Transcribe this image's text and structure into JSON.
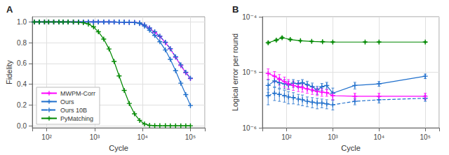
{
  "chart_data": [
    {
      "type": "line",
      "title": "A",
      "xlabel": "Cycle",
      "ylabel": "Fidelity",
      "log": "x",
      "xlim": [
        50,
        200000
      ],
      "xticks": [
        {
          "value": 100,
          "label": "10²"
        },
        {
          "value": 1000,
          "label": "10³"
        },
        {
          "value": 10000,
          "label": "10⁴"
        },
        {
          "value": 100000,
          "label": "10⁵"
        }
      ],
      "ylim": [
        -0.02,
        1.05
      ],
      "yticks": [
        {
          "value": 0.0,
          "label": "0.0"
        },
        0.2,
        0.4,
        0.6,
        0.8,
        {
          "value": 1.0,
          "label": "1.0"
        }
      ],
      "grid": true,
      "legend": "lower left",
      "series": [
        {
          "name": "MWPM-Corr",
          "color": "#ff00ff",
          "line_style": "solid",
          "marker": "+",
          "x": [
            55,
            70,
            90,
            110,
            140,
            180,
            220,
            280,
            360,
            460,
            580,
            740,
            950,
            1200,
            1550,
            2000,
            2550,
            3250,
            4150,
            5300,
            6800,
            8700,
            11000,
            14000,
            18000,
            23000,
            30000,
            38000,
            49000,
            63000,
            80000,
            100000
          ],
          "values": [
            1.0,
            1.0,
            1.0,
            1.0,
            1.0,
            1.0,
            1.0,
            1.0,
            1.0,
            1.0,
            1.0,
            1.0,
            1.0,
            1.0,
            1.0,
            1.0,
            0.9995,
            0.999,
            0.998,
            0.997,
            0.995,
            0.99,
            0.97,
            0.94,
            0.9,
            0.86,
            0.8,
            0.74,
            0.66,
            0.58,
            0.51,
            0.455
          ]
        },
        {
          "name": "Ours",
          "color": "#1f6fcc",
          "line_style": "solid",
          "marker": "+",
          "x": [
            55,
            70,
            90,
            110,
            140,
            180,
            220,
            280,
            360,
            460,
            580,
            740,
            950,
            1200,
            1550,
            2000,
            2550,
            3250,
            4150,
            5300,
            6800,
            8700,
            11000,
            14000,
            18000,
            23000,
            30000,
            38000,
            49000,
            63000,
            80000,
            100000
          ],
          "values": [
            1.0,
            1.0,
            1.0,
            1.0,
            1.0,
            1.0,
            1.0,
            1.0,
            1.0,
            1.0,
            1.0,
            1.0,
            1.0,
            1.0,
            1.0,
            1.0,
            0.9995,
            0.999,
            0.998,
            0.997,
            0.994,
            0.985,
            0.96,
            0.92,
            0.87,
            0.81,
            0.73,
            0.64,
            0.53,
            0.41,
            0.3,
            0.195
          ]
        },
        {
          "name": "Ours 10B",
          "color": "#1f6fcc",
          "line_style": "dashed",
          "marker": "+",
          "x": [
            55,
            70,
            90,
            110,
            140,
            180,
            220,
            280,
            360,
            460,
            580,
            740,
            950,
            1200,
            1550,
            2000,
            2550,
            3250,
            4150,
            5300,
            6800,
            8700,
            11000,
            14000,
            18000,
            23000,
            30000,
            38000,
            49000,
            63000,
            80000,
            100000
          ],
          "values": [
            1.0,
            1.0,
            1.0,
            1.0,
            1.0,
            1.0,
            1.0,
            1.0,
            1.0,
            1.0,
            1.0,
            1.0,
            1.0,
            1.0,
            1.0,
            1.0,
            0.9995,
            0.999,
            0.998,
            0.997,
            0.995,
            0.991,
            0.972,
            0.942,
            0.905,
            0.863,
            0.805,
            0.743,
            0.665,
            0.587,
            0.515,
            0.458
          ]
        },
        {
          "name": "PyMatching",
          "color": "#008800",
          "line_style": "solid",
          "marker": "+",
          "x": [
            55,
            70,
            90,
            110,
            140,
            180,
            220,
            280,
            360,
            460,
            580,
            740,
            950,
            1200,
            1550,
            2000,
            2550,
            3250,
            4150,
            5300,
            6800,
            8700,
            11000,
            14000,
            18000,
            23000,
            30000,
            38000,
            49000,
            63000,
            80000,
            100000
          ],
          "values": [
            1.0,
            1.0,
            1.0,
            1.0,
            1.0,
            1.0,
            1.0,
            0.9998,
            0.999,
            0.997,
            0.992,
            0.98,
            0.952,
            0.905,
            0.835,
            0.74,
            0.62,
            0.48,
            0.34,
            0.215,
            0.115,
            0.052,
            0.018,
            0.004,
            0.001,
            0.0002,
            5e-05,
            0.0,
            0.0,
            0.0,
            0.0,
            0.0
          ]
        }
      ]
    },
    {
      "type": "line",
      "title": "B",
      "xlabel": "Cycle",
      "ylabel": "Logical error per round",
      "log": true,
      "xlim": [
        30,
        200000
      ],
      "xticks": [
        {
          "value": 100,
          "label": "10²"
        },
        {
          "value": 1000,
          "label": "10³"
        },
        {
          "value": 10000,
          "label": "10⁴"
        },
        {
          "value": 100000,
          "label": "10⁵"
        }
      ],
      "ylim": [
        1e-06,
        0.0001
      ],
      "yticks": [
        {
          "value": 1e-06,
          "label": "10⁻⁶"
        },
        {
          "value": 1e-05,
          "label": "10⁻⁵"
        },
        {
          "value": 0.0001,
          "label": "10⁻⁴"
        }
      ],
      "grid": true,
      "series": [
        {
          "name": "PyMatching",
          "color": "#008800",
          "line_style": "solid",
          "marker": "+",
          "x": [
            40,
            60,
            80,
            120,
            200,
            350,
            600,
            1000,
            5000,
            10000,
            100000
          ],
          "values": [
            3.4e-05,
            3.8e-05,
            4.2e-05,
            3.9e-05,
            3.7e-05,
            3.6e-05,
            3.55e-05,
            3.5e-05,
            3.5e-05,
            3.5e-05,
            3.5e-05
          ],
          "yerr": [
            1.5e-06,
            1.5e-06,
            1.8e-06,
            1.3e-06,
            1e-06,
            8e-07,
            8e-07,
            8e-07,
            8e-07,
            8e-07,
            8e-07
          ]
        },
        {
          "name": "Ours 10B",
          "color": "#1f6fcc",
          "line_style": "dashed",
          "marker": "+",
          "x": [
            40,
            55,
            70,
            90,
            110,
            140,
            180,
            220,
            280,
            360,
            460,
            580,
            740,
            1000,
            3000,
            10000,
            100000
          ],
          "values": [
            3.8e-06,
            4.2e-06,
            4e-06,
            3.8e-06,
            3.6e-06,
            3.5e-06,
            3.3e-06,
            3.2e-06,
            3e-06,
            2.9e-06,
            2.8e-06,
            2.8e-06,
            2.7e-06,
            2.6e-06,
            3e-06,
            3.2e-06,
            3.4e-06
          ],
          "yerr": [
            1.2e-06,
            1.1e-06,
            1e-06,
            9e-07,
            9e-07,
            8e-07,
            7e-07,
            7e-07,
            6e-07,
            6e-07,
            6e-07,
            5e-07,
            5e-07,
            5e-07,
            4e-07,
            4e-07,
            4e-07
          ]
        },
        {
          "name": "Ours",
          "color": "#1f6fcc",
          "line_style": "solid",
          "marker": "+",
          "x": [
            40,
            55,
            70,
            90,
            110,
            140,
            180,
            220,
            280,
            360,
            460,
            580,
            740,
            1000,
            3000,
            10000,
            100000
          ],
          "values": [
            5.8e-06,
            7e-06,
            6.5e-06,
            6.2e-06,
            5.9e-06,
            6.4e-06,
            6.2e-06,
            6.5e-06,
            6e-06,
            5.5e-06,
            4.8e-06,
            5.5e-06,
            5.8e-06,
            4.2e-06,
            5.8e-06,
            6.2e-06,
            8.5e-06
          ],
          "yerr": [
            1.5e-06,
            1.5e-06,
            1.3e-06,
            1.2e-06,
            1e-06,
            1e-06,
            9e-07,
            9e-07,
            9e-07,
            9e-07,
            8e-07,
            8e-07,
            8e-07,
            1e-06,
            8e-07,
            6e-07,
            8e-07
          ]
        },
        {
          "name": "MWPM-Corr",
          "color": "#ff00ff",
          "line_style": "solid",
          "marker": "+",
          "x": [
            40,
            55,
            70,
            90,
            110,
            140,
            180,
            220,
            280,
            360,
            460,
            580,
            740,
            1000,
            3000,
            10000,
            100000
          ],
          "values": [
            9.5e-06,
            8.5e-06,
            7.5e-06,
            6.8e-06,
            6.2e-06,
            5.8e-06,
            5.5e-06,
            5.3e-06,
            5e-06,
            4.8e-06,
            4.5e-06,
            4.4e-06,
            4.3e-06,
            3.8e-06,
            3.7e-06,
            3.7e-06,
            3.7e-06
          ],
          "yerr": [
            2e-06,
            1.8e-06,
            1.6e-06,
            1.4e-06,
            1.2e-06,
            1.1e-06,
            1e-06,
            9e-07,
            8e-07,
            8e-07,
            7e-07,
            7e-07,
            6e-07,
            6e-07,
            5e-07,
            5e-07,
            5e-07
          ]
        }
      ]
    }
  ]
}
